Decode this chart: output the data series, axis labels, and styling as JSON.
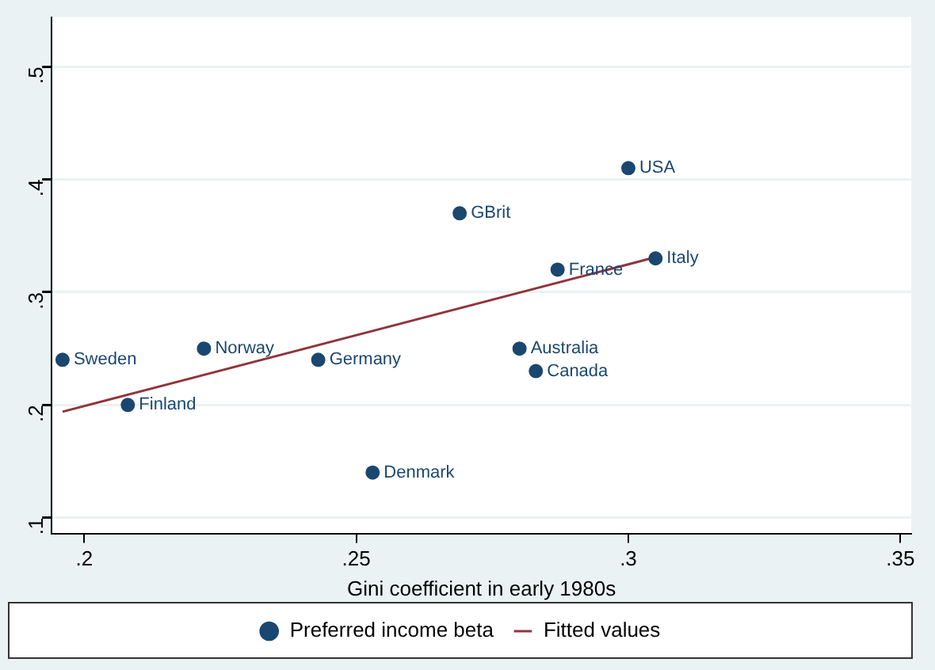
{
  "chart_data": {
    "type": "scatter",
    "xlabel": "Gini coefficient in early 1980s",
    "xlim": [
      0.194,
      0.352
    ],
    "xticks": [
      {
        "value": 0.2,
        "label": ".2"
      },
      {
        "value": 0.25,
        "label": ".25"
      },
      {
        "value": 0.3,
        "label": ".3"
      },
      {
        "value": 0.35,
        "label": ".35"
      }
    ],
    "ylim": [
      0.086,
      0.544
    ],
    "yticks": [
      {
        "value": 0.1,
        "label": ".1"
      },
      {
        "value": 0.2,
        "label": ".2"
      },
      {
        "value": 0.3,
        "label": ".3"
      },
      {
        "value": 0.4,
        "label": ".4"
      },
      {
        "value": 0.5,
        "label": ".5"
      }
    ],
    "series": [
      {
        "name": "Preferred income beta",
        "color": "#1a476f",
        "marker": "circle",
        "x": [
          0.196,
          0.208,
          0.222,
          0.243,
          0.253,
          0.269,
          0.28,
          0.283,
          0.287,
          0.3,
          0.305
        ],
        "values": [
          0.24,
          0.2,
          0.25,
          0.24,
          0.14,
          0.37,
          0.25,
          0.23,
          0.32,
          0.41,
          0.33
        ]
      },
      {
        "name": "Fitted values",
        "type": "line",
        "color": "#90353b",
        "marker": "none",
        "x": [
          0.196,
          0.305
        ],
        "values": [
          0.194,
          0.331
        ]
      }
    ],
    "annotations": [
      {
        "text": "Sweden",
        "x": 0.196,
        "y": 0.24
      },
      {
        "text": "Finland",
        "x": 0.208,
        "y": 0.2
      },
      {
        "text": "Norway",
        "x": 0.222,
        "y": 0.25
      },
      {
        "text": "Germany",
        "x": 0.243,
        "y": 0.24
      },
      {
        "text": "Denmark",
        "x": 0.253,
        "y": 0.14
      },
      {
        "text": "GBrit",
        "x": 0.269,
        "y": 0.37
      },
      {
        "text": "Australia",
        "x": 0.28,
        "y": 0.25
      },
      {
        "text": "Canada",
        "x": 0.283,
        "y": 0.23
      },
      {
        "text": "France",
        "x": 0.287,
        "y": 0.32
      },
      {
        "text": "USA",
        "x": 0.3,
        "y": 0.41
      },
      {
        "text": "Italy",
        "x": 0.305,
        "y": 0.33
      }
    ],
    "grid": "y",
    "legend": "bottom"
  }
}
